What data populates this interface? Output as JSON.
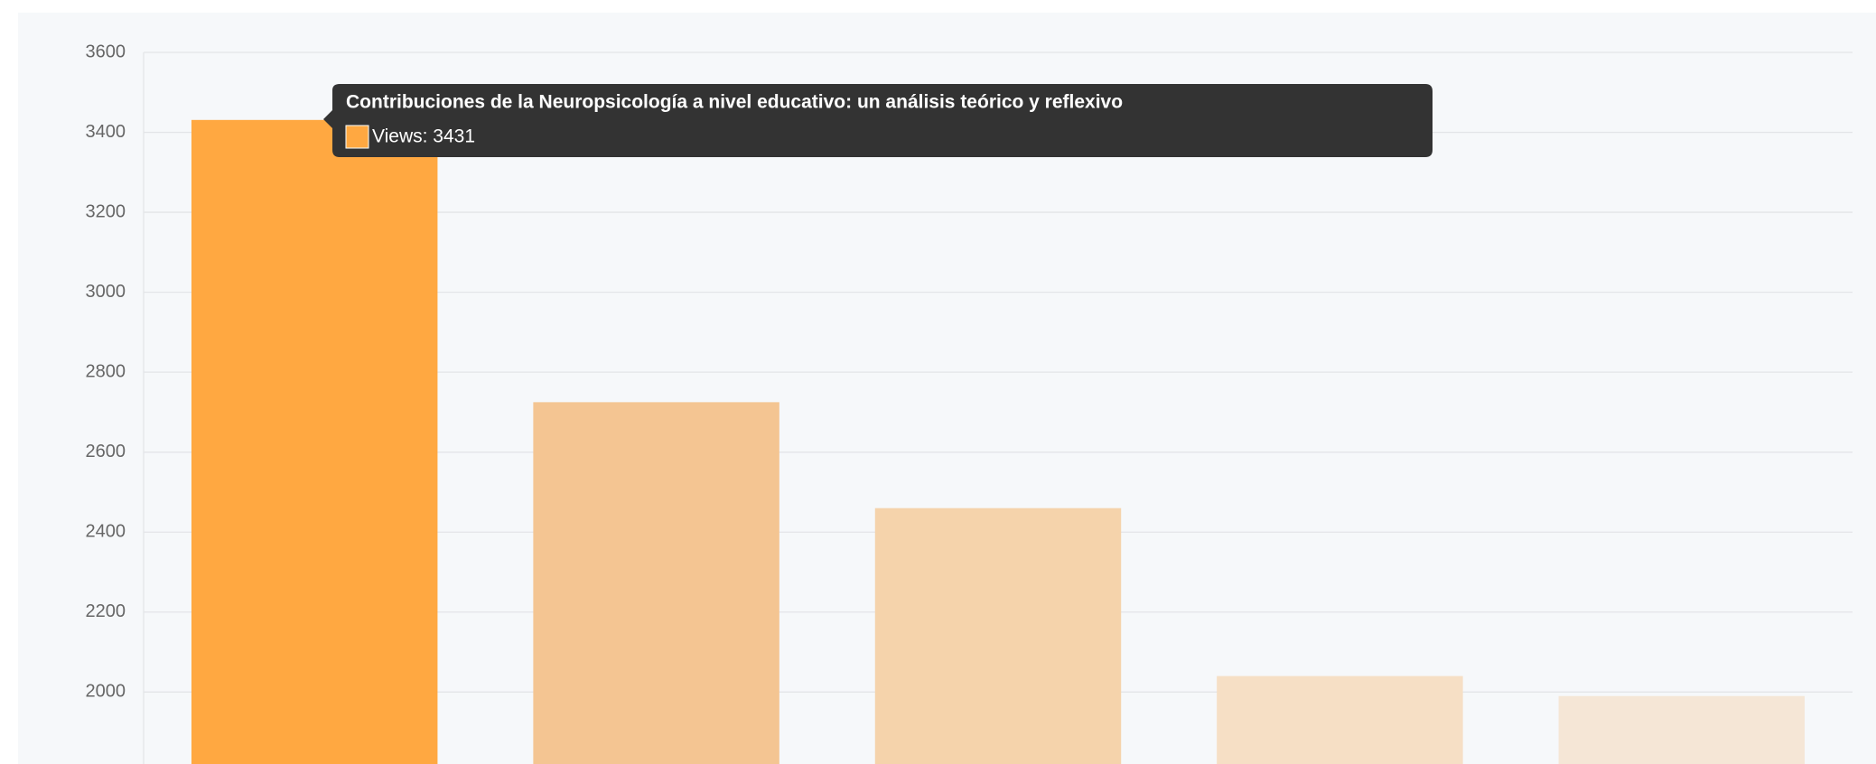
{
  "chart_data": {
    "type": "bar",
    "categories": [
      "Contribuciones de la Neuropsicología a nivel educativo: un análisis teórico y reflexivo",
      null,
      null,
      null,
      null
    ],
    "series": [
      {
        "name": "Views",
        "values": [
          3431,
          2725,
          2460,
          2040,
          1990
        ]
      }
    ],
    "colors": [
      "#ffa841",
      "#f4c592",
      "#f5d3ab",
      "#f6dfc5",
      "#f5e6d6"
    ],
    "ylim": [
      1820,
      3600
    ],
    "yticks": [
      2000,
      2200,
      2400,
      2600,
      2800,
      3000,
      3200,
      3400,
      3600
    ],
    "grid": true,
    "tooltip": {
      "title": "Contribuciones de la Neuropsicología a nivel educativo: un análisis teórico y reflexivo",
      "label": "Views: 3431"
    }
  }
}
